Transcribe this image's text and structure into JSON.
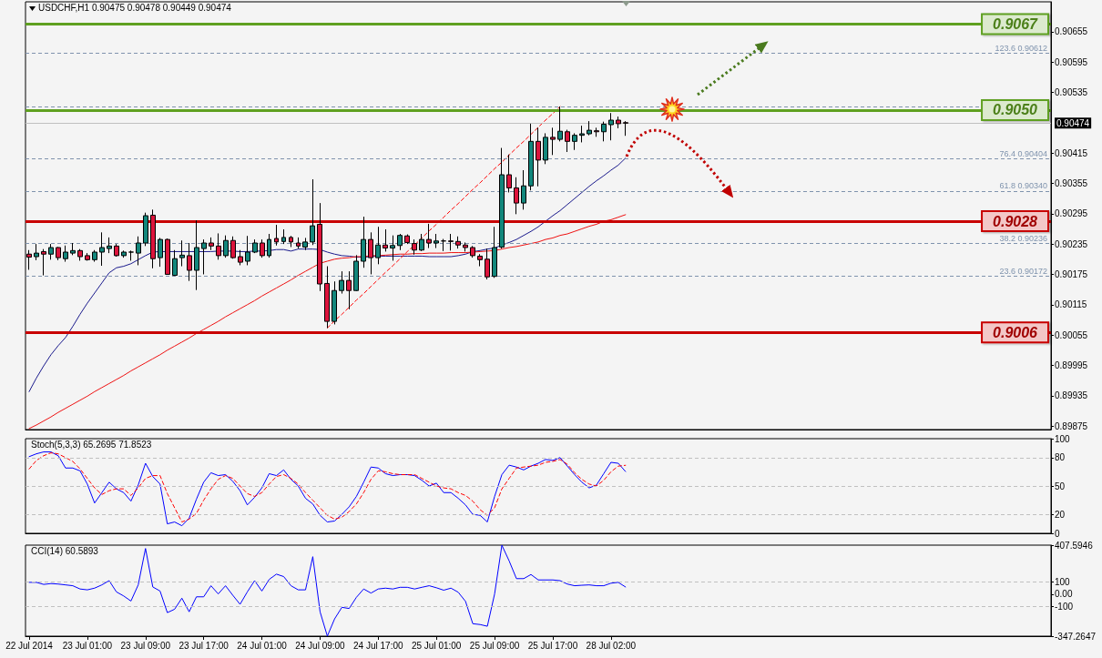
{
  "chart_data": [
    {
      "type": "candlestick",
      "title": "USDCHF,H1 0.90475 0.90478 0.90449 0.90474",
      "marker": "none",
      "tick_labels": "y",
      "categories": [
        null,
        null,
        null,
        null,
        null,
        null,
        null,
        null,
        null,
        null,
        null,
        null,
        null,
        null,
        null,
        null,
        null,
        null,
        null,
        null,
        null,
        null,
        null,
        null,
        null,
        null,
        null,
        null,
        null,
        null,
        null,
        null,
        null,
        null,
        null,
        null,
        null,
        null,
        null,
        null,
        null,
        null,
        null,
        null,
        null,
        null,
        null,
        null,
        null,
        null,
        null,
        null,
        null,
        null,
        null,
        null,
        null,
        null,
        null,
        null,
        null,
        null,
        null,
        null,
        null,
        null,
        null,
        null,
        null,
        null,
        null,
        null,
        null,
        null,
        null,
        null,
        null,
        null,
        null,
        null,
        null,
        null,
        null
      ],
      "ohlc": [
        [
          0.90215,
          0.90223,
          0.90184,
          0.90209
        ],
        [
          0.9021,
          0.90235,
          0.90203,
          0.90217
        ],
        [
          0.9022,
          0.90225,
          0.90173,
          0.90215
        ],
        [
          0.90215,
          0.90235,
          0.90204,
          0.90228
        ],
        [
          0.90228,
          0.90229,
          0.90203,
          0.90208
        ],
        [
          0.90206,
          0.90232,
          0.902,
          0.90219
        ],
        [
          0.90217,
          0.90237,
          0.90213,
          0.90222
        ],
        [
          0.90222,
          0.90225,
          0.90202,
          0.9021
        ],
        [
          0.90212,
          0.90217,
          0.90202,
          0.90204
        ],
        [
          0.90204,
          0.90223,
          0.902,
          0.90219
        ],
        [
          0.90219,
          0.90258,
          0.90192,
          0.90228
        ],
        [
          0.90226,
          0.90248,
          0.90217,
          0.90231
        ],
        [
          0.90231,
          0.90235,
          0.9021,
          0.90212
        ],
        [
          0.90212,
          0.90222,
          0.90208,
          0.90219
        ],
        [
          0.90219,
          0.90222,
          0.90202,
          0.90219
        ],
        [
          0.90217,
          0.9025,
          0.90193,
          0.90237
        ],
        [
          0.90237,
          0.90297,
          0.90231,
          0.90291
        ],
        [
          0.90292,
          0.90303,
          0.90187,
          0.90206
        ],
        [
          0.90208,
          0.90247,
          0.9019,
          0.90244
        ],
        [
          0.90244,
          0.90246,
          0.90174,
          0.90175
        ],
        [
          0.90173,
          0.90223,
          0.90172,
          0.90206
        ],
        [
          0.90208,
          0.90242,
          0.90191,
          0.90213
        ],
        [
          0.90212,
          0.90237,
          0.90162,
          0.90183
        ],
        [
          0.90183,
          0.90282,
          0.90144,
          0.90228
        ],
        [
          0.90226,
          0.90244,
          0.90175,
          0.90237
        ],
        [
          0.90237,
          0.90248,
          0.90223,
          0.90231
        ],
        [
          0.90231,
          0.90256,
          0.90204,
          0.90212
        ],
        [
          0.90212,
          0.90252,
          0.90208,
          0.90242
        ],
        [
          0.90242,
          0.9025,
          0.90206,
          0.90208
        ],
        [
          0.9021,
          0.90223,
          0.90193,
          0.90199
        ],
        [
          0.90201,
          0.90251,
          0.90193,
          0.90219
        ],
        [
          0.90219,
          0.90244,
          0.90217,
          0.90237
        ],
        [
          0.90237,
          0.90244,
          0.90208,
          0.90212
        ],
        [
          0.90212,
          0.90255,
          0.90208,
          0.90244
        ],
        [
          0.90246,
          0.90273,
          0.90232,
          0.90239
        ],
        [
          0.9024,
          0.90264,
          0.90235,
          0.90248
        ],
        [
          0.90248,
          0.90251,
          0.90229,
          0.90239
        ],
        [
          0.90237,
          0.90248,
          0.90226,
          0.90231
        ],
        [
          0.90229,
          0.90247,
          0.90223,
          0.90239
        ],
        [
          0.90239,
          0.90363,
          0.90233,
          0.90271
        ],
        [
          0.90274,
          0.90316,
          0.90142,
          0.90156
        ],
        [
          0.90157,
          0.90191,
          0.90069,
          0.90082
        ],
        [
          0.90082,
          0.90161,
          0.90076,
          0.90143
        ],
        [
          0.90143,
          0.90181,
          0.90137,
          0.90163
        ],
        [
          0.90163,
          0.90181,
          0.90106,
          0.90143
        ],
        [
          0.90143,
          0.90213,
          0.90142,
          0.90201
        ],
        [
          0.90201,
          0.90289,
          0.90188,
          0.90244
        ],
        [
          0.90244,
          0.90258,
          0.90175,
          0.90208
        ],
        [
          0.90208,
          0.90269,
          0.90195,
          0.90233
        ],
        [
          0.90233,
          0.90264,
          0.9022,
          0.90227
        ],
        [
          0.90227,
          0.90252,
          0.90202,
          0.90232
        ],
        [
          0.90232,
          0.90255,
          0.90223,
          0.90252
        ],
        [
          0.90251,
          0.90254,
          0.90235,
          0.90238
        ],
        [
          0.90236,
          0.90244,
          0.90214,
          0.90223
        ],
        [
          0.90223,
          0.90255,
          0.90221,
          0.90244
        ],
        [
          0.90244,
          0.90275,
          0.90227,
          0.90237
        ],
        [
          0.90237,
          0.90255,
          0.90227,
          0.90241
        ],
        [
          0.90241,
          0.90245,
          0.90221,
          0.90241
        ],
        [
          0.90241,
          0.90255,
          0.90222,
          0.9024
        ],
        [
          0.9024,
          0.9025,
          0.90226,
          0.90233
        ],
        [
          0.90233,
          0.90238,
          0.9022,
          0.90228
        ],
        [
          0.90228,
          0.90231,
          0.90208,
          0.90212
        ],
        [
          0.90211,
          0.90215,
          0.90191,
          0.90204
        ],
        [
          0.90205,
          0.90226,
          0.90165,
          0.9017
        ],
        [
          0.90171,
          0.90269,
          0.90168,
          0.90228
        ],
        [
          0.90229,
          0.90425,
          0.90226,
          0.90372
        ],
        [
          0.90372,
          0.90412,
          0.90337,
          0.90346
        ],
        [
          0.90346,
          0.90367,
          0.90294,
          0.90316
        ],
        [
          0.90316,
          0.90381,
          0.90303,
          0.9035
        ],
        [
          0.9035,
          0.90473,
          0.90341,
          0.90438
        ],
        [
          0.90438,
          0.90465,
          0.90349,
          0.90401
        ],
        [
          0.90401,
          0.90454,
          0.90393,
          0.90446
        ],
        [
          0.90446,
          0.90465,
          0.90411,
          0.90442
        ],
        [
          0.90442,
          0.90507,
          0.90438,
          0.90458
        ],
        [
          0.90457,
          0.90461,
          0.90417,
          0.90438
        ],
        [
          0.90438,
          0.90454,
          0.90421,
          0.9045
        ],
        [
          0.9045,
          0.90469,
          0.90436,
          0.90453
        ],
        [
          0.90453,
          0.90478,
          0.9045,
          0.9046
        ],
        [
          0.90459,
          0.90465,
          0.90447,
          0.90457
        ],
        [
          0.90457,
          0.90477,
          0.90438,
          0.90472
        ],
        [
          0.90471,
          0.90494,
          0.9044,
          0.9048
        ],
        [
          0.9048,
          0.90487,
          0.90464,
          0.90473
        ],
        [
          0.90475,
          0.90478,
          0.90449,
          0.90474
        ]
      ],
      "colors": [
        "#dc143c",
        "#12877c",
        "#dc143c",
        "#12877c",
        "#dc143c",
        "#12877c",
        "#12877c",
        "#dc143c",
        "#dc143c",
        "#12877c",
        "#12877c",
        "#12877c",
        "#dc143c",
        "#12877c",
        "#000000",
        "#12877c",
        "#12877c",
        "#dc143c",
        "#12877c",
        "#dc143c",
        "#12877c",
        "#12877c",
        "#dc143c",
        "#12877c",
        "#12877c",
        "#dc143c",
        "#dc143c",
        "#12877c",
        "#dc143c",
        "#dc143c",
        "#12877c",
        "#12877c",
        "#dc143c",
        "#12877c",
        "#dc143c",
        "#12877c",
        "#dc143c",
        "#dc143c",
        "#12877c",
        "#12877c",
        "#dc143c",
        "#dc143c",
        "#12877c",
        "#12877c",
        "#dc143c",
        "#12877c",
        "#12877c",
        "#dc143c",
        "#12877c",
        "#dc143c",
        "#12877c",
        "#12877c",
        "#dc143c",
        "#dc143c",
        "#12877c",
        "#dc143c",
        "#12877c",
        "#000000",
        "#dc143c",
        "#dc143c",
        "#dc143c",
        "#dc143c",
        "#dc143c",
        "#dc143c",
        "#12877c",
        "#12877c",
        "#dc143c",
        "#dc143c",
        "#12877c",
        "#12877c",
        "#dc143c",
        "#12877c",
        "#dc143c",
        "#12877c",
        "#dc143c",
        "#12877c",
        "#12877c",
        "#12877c",
        "#dc143c",
        "#12877c",
        "#12877c",
        "#dc143c",
        "#dc143c"
      ],
      "series": [
        {
          "type": "line",
          "color": "#1a1a8c",
          "values": [
            0.89943,
            0.8997,
            0.89994,
            0.90016,
            0.90034,
            0.9005,
            0.90072,
            0.90096,
            0.90118,
            0.90138,
            0.90158,
            0.90178,
            0.90188,
            0.90191,
            0.90196,
            0.90204,
            0.90212,
            0.90219,
            0.9022,
            0.9022,
            0.9022,
            0.9022,
            0.9022,
            0.9022,
            0.9022,
            0.9022,
            0.90221,
            0.90221,
            0.90221,
            0.9022,
            0.9022,
            0.90221,
            0.90221,
            0.90222,
            0.90224,
            0.90224,
            0.90221,
            0.90225,
            0.90225,
            0.90225,
            0.90224,
            0.90219,
            0.90215,
            0.90212,
            0.90211,
            0.90209,
            0.90209,
            0.9021,
            0.90211,
            0.90211,
            0.90211,
            0.90211,
            0.90211,
            0.90211,
            0.90211,
            0.9021,
            0.9021,
            0.9021,
            0.9021,
            0.90212,
            0.90215,
            0.9022,
            0.90222,
            0.90225,
            0.90227,
            0.90233,
            0.90238,
            0.90244,
            0.90252,
            0.9026,
            0.90269,
            0.9028,
            0.90291,
            0.90301,
            0.90313,
            0.90325,
            0.90337,
            0.90349,
            0.9036,
            0.9037,
            0.90381,
            0.90391,
            0.90405
          ]
        },
        {
          "type": "line",
          "color": "#ee1111",
          "values": [
            0.8987,
            0.89877,
            0.89885,
            0.89893,
            0.89902,
            0.8991,
            0.89918,
            0.89926,
            0.89934,
            0.89943,
            0.89951,
            0.89959,
            0.89967,
            0.89975,
            0.89984,
            0.89992,
            0.9,
            0.90008,
            0.90016,
            0.90025,
            0.90033,
            0.90041,
            0.90049,
            0.90058,
            0.90066,
            0.90074,
            0.90082,
            0.90091,
            0.90099,
            0.90107,
            0.90115,
            0.90123,
            0.90132,
            0.9014,
            0.90148,
            0.90156,
            0.90164,
            0.90173,
            0.90181,
            0.90189,
            0.90197,
            0.90201,
            0.90205,
            0.90207,
            0.90208,
            0.9021,
            0.9021,
            0.90212,
            0.90212,
            0.90213,
            0.90214,
            0.90215,
            0.90215,
            0.90216,
            0.90216,
            0.90217,
            0.90217,
            0.90217,
            0.90218,
            0.90218,
            0.90218,
            0.90219,
            0.9022,
            0.90221,
            0.90222,
            0.90225,
            0.90228,
            0.9023,
            0.90233,
            0.90236,
            0.90239,
            0.90244,
            0.90247,
            0.90252,
            0.90255,
            0.9026,
            0.90265,
            0.9027,
            0.90274,
            0.9028,
            0.90283,
            0.90288,
            0.90293
          ]
        },
        {
          "type": "line",
          "color": "#ff0000",
          "line_style": "dashed",
          "values": [
            null,
            null,
            null,
            null,
            null,
            null,
            null,
            null,
            null,
            null,
            null,
            null,
            null,
            null,
            null,
            null,
            null,
            null,
            null,
            null,
            null,
            null,
            null,
            null,
            null,
            null,
            null,
            null,
            null,
            null,
            null,
            null,
            null,
            null,
            null,
            null,
            null,
            null,
            null,
            null,
            null,
            0.90069,
            0.90083,
            0.90096,
            0.9011,
            0.90124,
            0.90137,
            0.90151,
            0.90165,
            0.90179,
            0.90192,
            0.90206,
            0.9022,
            0.90233,
            0.90247,
            0.90261,
            0.90274,
            0.90288,
            0.90302,
            0.90315,
            0.90329,
            0.90343,
            0.90356,
            0.9037,
            0.90384,
            0.90397,
            0.90411,
            0.90425,
            0.90438,
            0.90452,
            0.90466,
            0.9048,
            0.90493,
            0.90507,
            null,
            null,
            null,
            null,
            null,
            null,
            null,
            null,
            null
          ]
        }
      ],
      "ylim": [
        0.89868,
        0.90714
      ],
      "yticks": [
        0.89875,
        0.89935,
        0.89995,
        0.90055,
        0.90115,
        0.90175,
        0.90235,
        0.90295,
        0.90355,
        0.90415,
        0.90535,
        0.90595,
        0.90655
      ],
      "ref_lines": [
        {
          "axis": "y",
          "value": 0.9067,
          "label": "0.9067",
          "color": "#5fa020"
        },
        {
          "axis": "y",
          "value": 0.90612,
          "label": "123.6 0.90612",
          "color": "#7f93ad",
          "line_style": "dashed"
        },
        {
          "axis": "y",
          "value": 0.90507,
          "color": "#7f93ad",
          "line_style": "dashed"
        },
        {
          "axis": "y",
          "value": 0.905,
          "label": "0.9050",
          "color": "#5fa020"
        },
        {
          "axis": "y",
          "value": 0.90474,
          "label": "0.90474",
          "color": "#c0c0c0"
        },
        {
          "axis": "y",
          "value": 0.90404,
          "label": "76.4 0.90404",
          "color": "#7f93ad",
          "line_style": "dashed"
        },
        {
          "axis": "y",
          "value": 0.9034,
          "label": "61.8 0.90340",
          "color": "#7f93ad",
          "line_style": "dashed"
        },
        {
          "axis": "y",
          "value": 0.9028,
          "label": "0.9028",
          "color": "#c80000"
        },
        {
          "axis": "y",
          "value": 0.90236,
          "label": "38.2 0.90236",
          "color": "#7f93ad",
          "line_style": "dashed"
        },
        {
          "axis": "y",
          "value": 0.90172,
          "label": "23.6 0.90172",
          "color": "#7f93ad",
          "line_style": "dashed"
        },
        {
          "axis": "y",
          "value": 0.9006,
          "label": "0.9006",
          "color": "#c80000"
        }
      ]
    },
    {
      "type": "line",
      "title": "Stoch(5,3,3) 65.2695 71.8523",
      "marker": "none",
      "tick_labels": "y",
      "categories": [
        null,
        null,
        null,
        null,
        null,
        null,
        null,
        null,
        null,
        null,
        null,
        null,
        null,
        null,
        null,
        null,
        null,
        null,
        null,
        null,
        null,
        null,
        null,
        null,
        null,
        null,
        null,
        null,
        null,
        null,
        null,
        null,
        null,
        null,
        null,
        null,
        null,
        null,
        null,
        null,
        null,
        null,
        null,
        null,
        null,
        null,
        null,
        null,
        null,
        null,
        null,
        null,
        null,
        null,
        null,
        null,
        null,
        null,
        null,
        null,
        null,
        null,
        null,
        null,
        null,
        null,
        null,
        null,
        null,
        null,
        null,
        null,
        null,
        null,
        null,
        null,
        null,
        null,
        null,
        null,
        null,
        null,
        null
      ],
      "series": [
        {
          "color": "#0000ff",
          "values": [
            81,
            84,
            86,
            86,
            82,
            69,
            69,
            66,
            52,
            32,
            43,
            54,
            47,
            43,
            34,
            51,
            74,
            60,
            52,
            10,
            12,
            8,
            16,
            36,
            54,
            64,
            61,
            62,
            55,
            45,
            30,
            38,
            48,
            63,
            61,
            67,
            57,
            50,
            37,
            31,
            19,
            12,
            13,
            20,
            28,
            39,
            54,
            70,
            69,
            63,
            61,
            62,
            62,
            61,
            56,
            50,
            53,
            43,
            43,
            37,
            30,
            20,
            19,
            12,
            39,
            62,
            72,
            70,
            67,
            71,
            74,
            78,
            77,
            80,
            71,
            62,
            54,
            48,
            51,
            63,
            75,
            74,
            65.2695
          ]
        },
        {
          "color": "#ff0000",
          "line_style": "dashed",
          "values": [
            68,
            77,
            82,
            85,
            84,
            80,
            76,
            68,
            58,
            48,
            41,
            45,
            47,
            47,
            40,
            48,
            58,
            61,
            61,
            42,
            27,
            12,
            15,
            21,
            35,
            47,
            57,
            61,
            58,
            50,
            42,
            39,
            43,
            52,
            60,
            62,
            58,
            52,
            43,
            35,
            27,
            19,
            15,
            17,
            23,
            31,
            43,
            57,
            66,
            65,
            63,
            62,
            62,
            62,
            58,
            54,
            50,
            48,
            47,
            43,
            40,
            34,
            25,
            19,
            27,
            47,
            58,
            69,
            70,
            71,
            72,
            75,
            76,
            78,
            73,
            64,
            57,
            52,
            50,
            56,
            65,
            71,
            71.8523
          ]
        }
      ],
      "ylim": [
        0,
        100
      ],
      "yticks": [
        0,
        20,
        50,
        80,
        100
      ],
      "ref_lines": [
        {
          "axis": "y",
          "value": 80,
          "color": "#c0c0c0",
          "line_style": "dashed"
        },
        {
          "axis": "y",
          "value": 50,
          "color": "#c0c0c0",
          "line_style": "dashed"
        },
        {
          "axis": "y",
          "value": 20,
          "color": "#c0c0c0",
          "line_style": "dashed"
        }
      ]
    },
    {
      "type": "line",
      "title": "CCI(14) 60.5893",
      "marker": "none",
      "categories": [
        "22 Jul 2014",
        null,
        null,
        null,
        null,
        null,
        null,
        null,
        "23 Jul 01:00",
        null,
        null,
        null,
        null,
        null,
        null,
        null,
        "23 Jul 09:00",
        null,
        null,
        null,
        null,
        null,
        null,
        null,
        "23 Jul 17:00",
        null,
        null,
        null,
        null,
        null,
        null,
        null,
        "24 Jul 01:00",
        null,
        null,
        null,
        null,
        null,
        null,
        null,
        "24 Jul 09:00",
        null,
        null,
        null,
        null,
        null,
        null,
        null,
        "24 Jul 17:00",
        null,
        null,
        null,
        null,
        null,
        null,
        null,
        "25 Jul 01:00",
        null,
        null,
        null,
        null,
        null,
        null,
        null,
        "25 Jul 09:00",
        null,
        null,
        null,
        null,
        null,
        null,
        null,
        "25 Jul 17:00",
        null,
        null,
        null,
        null,
        null,
        null,
        null,
        "28 Jul 02:00",
        null,
        null
      ],
      "series": [
        {
          "color": "#0000ff",
          "values": [
            99,
            99,
            82,
            89,
            85,
            78,
            71,
            44,
            37,
            51,
            78,
            113,
            20,
            -14,
            -56,
            78,
            380,
            61,
            27,
            -152,
            -124,
            -32,
            -145,
            -21,
            -21,
            71,
            3,
            71,
            -8,
            -83,
            20,
            113,
            27,
            123,
            167,
            147,
            71,
            37,
            37,
            312,
            -145,
            -347,
            -204,
            -108,
            -118,
            -25,
            44,
            10,
            44,
            51,
            44,
            58,
            58,
            44,
            58,
            71,
            54,
            34,
            51,
            17,
            -59,
            -244,
            -251,
            -265,
            3,
            407,
            277,
            130,
            130,
            164,
            119,
            119,
            119,
            113,
            85,
            71,
            75,
            78,
            71,
            71,
            92,
            99,
            60.5893
          ]
        }
      ],
      "ylim": [
        -347.2647,
        407.5946
      ],
      "yticks": [
        -347.2647,
        -100,
        {
          "value": 0,
          "label": "0.00"
        },
        100,
        407.5946
      ],
      "ref_lines": [
        {
          "axis": "y",
          "value": 100,
          "color": "#c0c0c0",
          "line_style": "dashed"
        },
        {
          "axis": "y",
          "value": -100,
          "color": "#c0c0c0",
          "line_style": "dashed"
        }
      ]
    }
  ]
}
